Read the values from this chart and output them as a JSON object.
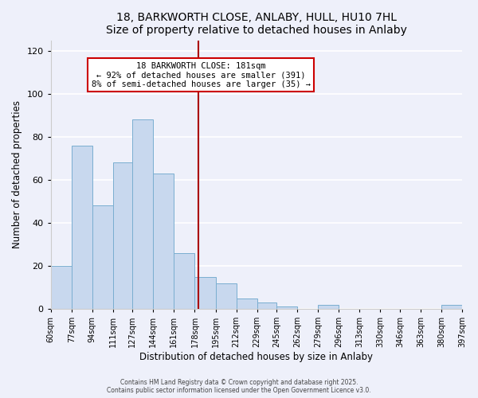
{
  "title": "18, BARKWORTH CLOSE, ANLABY, HULL, HU10 7HL",
  "subtitle": "Size of property relative to detached houses in Anlaby",
  "xlabel": "Distribution of detached houses by size in Anlaby",
  "ylabel": "Number of detached properties",
  "bar_color": "#c8d8ee",
  "bar_edge_color": "#7aaed0",
  "background_color": "#eef0fa",
  "plot_bg_color": "#eef0fa",
  "grid_color": "#ffffff",
  "bins": [
    60,
    77,
    94,
    111,
    127,
    144,
    161,
    178,
    195,
    212,
    229,
    245,
    262,
    279,
    296,
    313,
    330,
    346,
    363,
    380,
    397
  ],
  "bin_labels": [
    "60sqm",
    "77sqm",
    "94sqm",
    "111sqm",
    "127sqm",
    "144sqm",
    "161sqm",
    "178sqm",
    "195sqm",
    "212sqm",
    "229sqm",
    "245sqm",
    "262sqm",
    "279sqm",
    "296sqm",
    "313sqm",
    "330sqm",
    "346sqm",
    "363sqm",
    "380sqm",
    "397sqm"
  ],
  "counts": [
    20,
    76,
    48,
    68,
    88,
    63,
    26,
    15,
    12,
    5,
    3,
    1,
    0,
    2,
    0,
    0,
    0,
    0,
    0,
    2
  ],
  "vline_x": 181,
  "vline_color": "#aa0000",
  "annotation_title": "18 BARKWORTH CLOSE: 181sqm",
  "annotation_line1": "← 92% of detached houses are smaller (391)",
  "annotation_line2": "8% of semi-detached houses are larger (35) →",
  "annotation_box_color": "#ffffff",
  "annotation_box_edge": "#cc0000",
  "ylim": [
    0,
    125
  ],
  "yticks": [
    0,
    20,
    40,
    60,
    80,
    100,
    120
  ],
  "footer1": "Contains HM Land Registry data © Crown copyright and database right 2025.",
  "footer2": "Contains public sector information licensed under the Open Government Licence v3.0."
}
